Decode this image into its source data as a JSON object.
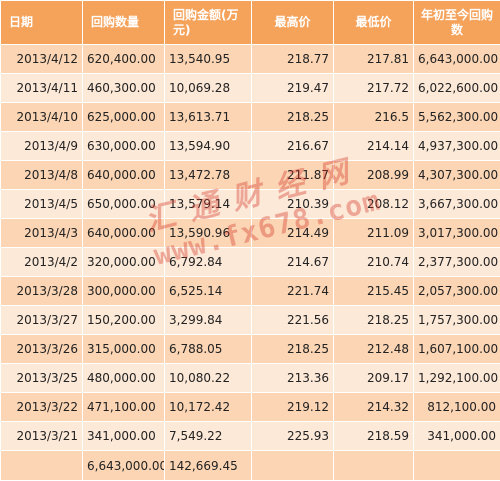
{
  "table": {
    "headers": [
      "日期",
      "回购数量",
      "回购金额(万元)",
      "最高价",
      "最低价",
      "年初至今回购数"
    ],
    "rows": [
      [
        "2013/4/12",
        "620,400.00",
        "13,540.95",
        "218.77",
        "217.81",
        "6,643,000.00"
      ],
      [
        "2013/4/11",
        "460,300.00",
        "10,069.28",
        "219.47",
        "217.72",
        "6,022,600.00"
      ],
      [
        "2013/4/10",
        "625,000.00",
        "13,613.71",
        "218.25",
        "216.5",
        "5,562,300.00"
      ],
      [
        "2013/4/9",
        "630,000.00",
        "13,594.90",
        "216.67",
        "214.14",
        "4,937,300.00"
      ],
      [
        "2013/4/8",
        "640,000.00",
        "13,472.78",
        "211.87",
        "208.99",
        "4,307,300.00"
      ],
      [
        "2013/4/5",
        "650,000.00",
        "13,579.14",
        "210.39",
        "208.12",
        "3,667,300.00"
      ],
      [
        "2013/4/3",
        "640,000.00",
        "13,590.96",
        "214.49",
        "211.09",
        "3,017,300.00"
      ],
      [
        "2013/4/2",
        "320,000.00",
        "6,792.84",
        "214.67",
        "210.74",
        "2,377,300.00"
      ],
      [
        "2013/3/28",
        "300,000.00",
        "6,525.14",
        "221.74",
        "215.45",
        "2,057,300.00"
      ],
      [
        "2013/3/27",
        "150,200.00",
        "3,299.84",
        "221.56",
        "218.25",
        "1,757,300.00"
      ],
      [
        "2013/3/26",
        "315,000.00",
        "6,788.05",
        "218.25",
        "212.48",
        "1,607,100.00"
      ],
      [
        "2013/3/25",
        "480,000.00",
        "10,080.22",
        "213.36",
        "209.17",
        "1,292,100.00"
      ],
      [
        "2013/3/22",
        "471,100.00",
        "10,172.42",
        "219.12",
        "214.32",
        "812,100.00"
      ],
      [
        "2013/3/21",
        "341,000.00",
        "7,549.22",
        "225.93",
        "218.59",
        "341,000.00"
      ]
    ],
    "totals": [
      "",
      "6,643,000.00",
      "142,669.45",
      "",
      "",
      ""
    ]
  },
  "watermark": {
    "line1": "汇 通 财 经 网",
    "line2": "www.fx678.com",
    "color": "#d43a2a"
  },
  "colors": {
    "header_bg": "#f5a25a",
    "row_dark": "#fbd5b4",
    "row_light": "#fde9d8"
  }
}
